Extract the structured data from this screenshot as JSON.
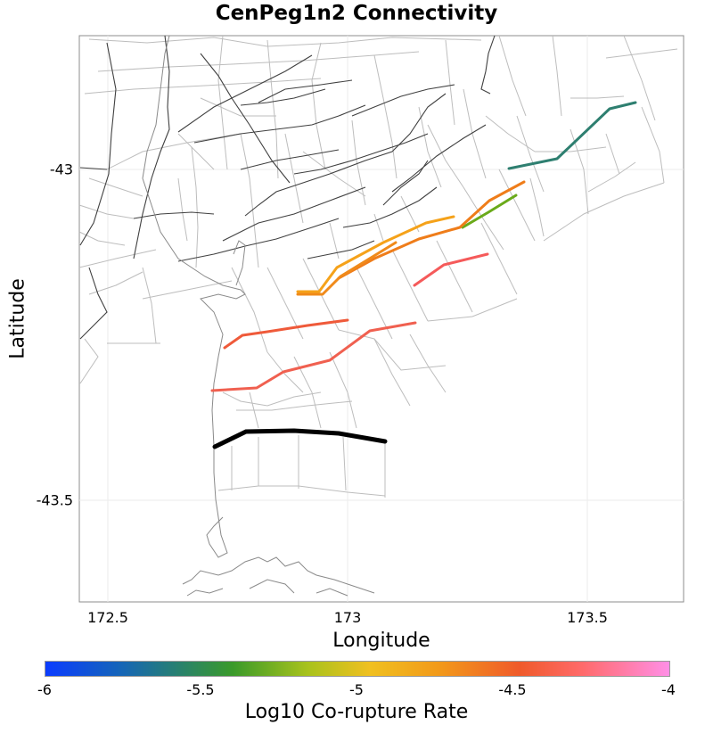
{
  "title": "CenPeg1n2 Connectivity",
  "x_axis": {
    "label": "Longitude",
    "ticks": [
      "172.5",
      "173",
      "173.5"
    ]
  },
  "y_axis": {
    "label": "Latitude",
    "ticks": [
      "-43",
      "-43.5"
    ]
  },
  "colorbar": {
    "label": "Log10 Co-rupture Rate",
    "ticks": [
      "-6",
      "-5.5",
      "-5",
      "-4.5",
      "-4"
    ],
    "range": [
      -6,
      -4
    ]
  },
  "colors": {
    "selected": "#000000",
    "grid_fault": "#bdbdbd",
    "trace_fault": "#404040",
    "coast": "#8a8a8a"
  },
  "ruptures": [
    {
      "name": "teal",
      "color": "#2e7f70",
      "log10_rate": -5.6
    },
    {
      "name": "green",
      "color": "#6aaa1a",
      "log10_rate": -5.3
    },
    {
      "name": "orange-a",
      "color": "#ef7d1a",
      "log10_rate": -4.7
    },
    {
      "name": "orange-b",
      "color": "#f5a21a",
      "log10_rate": -4.9
    },
    {
      "name": "orange-c",
      "color": "#f08a1a",
      "log10_rate": -4.75
    },
    {
      "name": "red-a",
      "color": "#ef5a3a",
      "log10_rate": -4.4
    },
    {
      "name": "red-b",
      "color": "#f06050",
      "log10_rate": -4.35
    },
    {
      "name": "pink-red",
      "color": "#f55a5a",
      "log10_rate": -4.3
    }
  ]
}
